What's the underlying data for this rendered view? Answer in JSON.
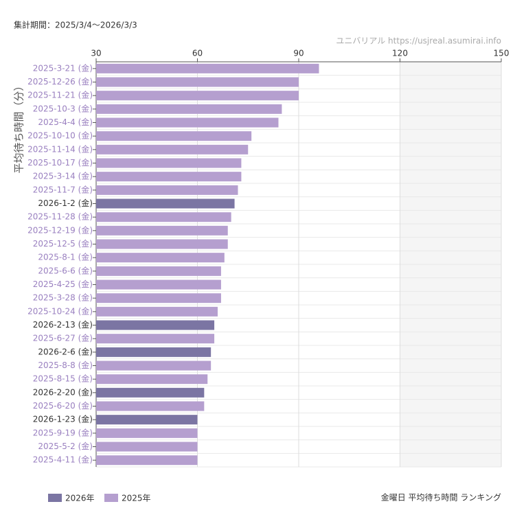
{
  "chart_data": {
    "type": "barh",
    "period": "集計期間：2025/3/4〜2026/3/3",
    "source": "ユニバリアル https://usjreal.asumirai.info",
    "ylabel": "平均待ち時間（分）",
    "title": "金曜日 平均待ち時間 ランキング",
    "categories": [
      "2025-3-21 (金)",
      "2025-12-26 (金)",
      "2025-11-21 (金)",
      "2025-10-3 (金)",
      "2025-4-4 (金)",
      "2025-10-10 (金)",
      "2025-11-14 (金)",
      "2025-10-17 (金)",
      "2025-3-14 (金)",
      "2025-11-7 (金)",
      "2026-1-2 (金)",
      "2025-11-28 (金)",
      "2025-12-19 (金)",
      "2025-12-5 (金)",
      "2025-8-1 (金)",
      "2025-6-6 (金)",
      "2025-4-25 (金)",
      "2025-3-28 (金)",
      "2025-10-24 (金)",
      "2026-2-13 (金)",
      "2025-6-27 (金)",
      "2026-2-6 (金)",
      "2025-8-8 (金)",
      "2025-8-15 (金)",
      "2026-2-20 (金)",
      "2025-6-20 (金)",
      "2026-1-23 (金)",
      "2025-9-19 (金)",
      "2025-5-2 (金)",
      "2025-4-11 (金)"
    ],
    "series": [
      {
        "name": "2026年",
        "color": "#7b75a3",
        "label_color": "#333333",
        "values": [
          null,
          null,
          null,
          null,
          null,
          null,
          null,
          null,
          null,
          null,
          71,
          null,
          null,
          null,
          null,
          null,
          null,
          null,
          null,
          65,
          null,
          64,
          null,
          null,
          62,
          null,
          60,
          null,
          null,
          null
        ]
      },
      {
        "name": "2025年",
        "color": "#b59fcf",
        "label_color": "#9a80c0",
        "values": [
          96,
          90,
          90,
          85,
          84,
          76,
          75,
          73,
          73,
          72,
          null,
          70,
          69,
          69,
          68,
          67,
          67,
          67,
          66,
          null,
          65,
          null,
          64,
          63,
          null,
          62,
          null,
          60,
          60,
          60
        ]
      }
    ],
    "xlim": [
      30,
      150
    ],
    "xticks": [
      30,
      60,
      90,
      120,
      150
    ],
    "shaded_range": [
      120,
      150
    ],
    "grid": true
  }
}
